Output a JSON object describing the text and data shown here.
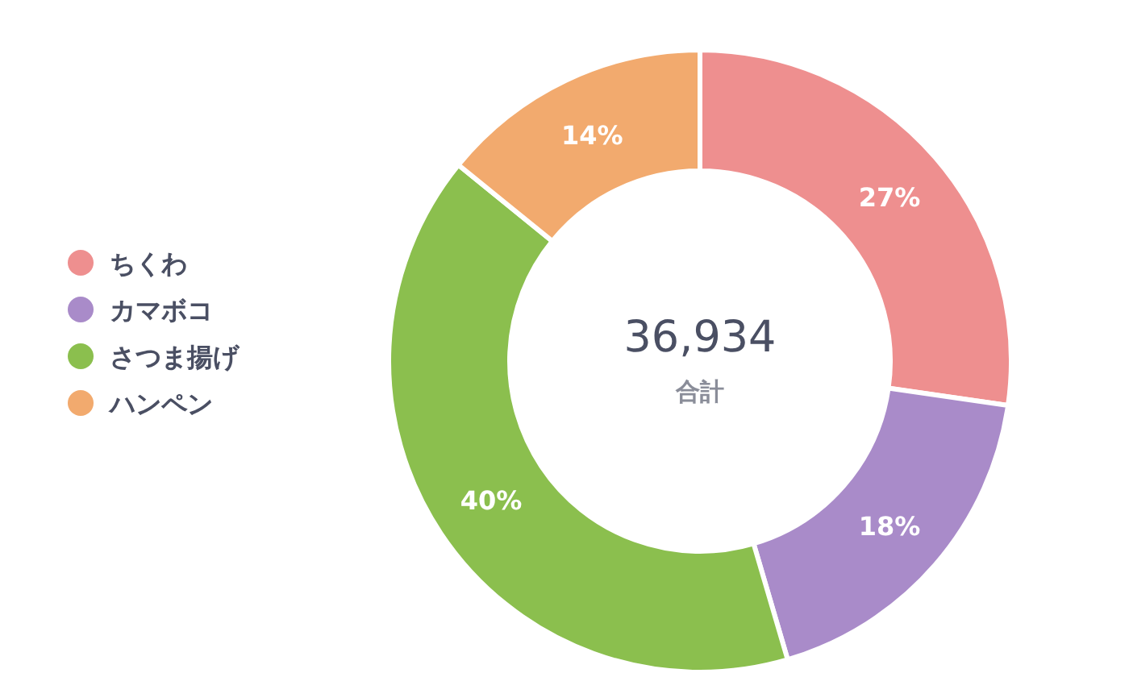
{
  "chart_data": {
    "type": "donut",
    "categories": [
      "ちくわ",
      "カマボコ",
      "さつま揚げ",
      "ハンペン"
    ],
    "values": [
      27,
      18,
      40,
      14
    ],
    "value_labels": [
      "27%",
      "18%",
      "40%",
      "14%"
    ],
    "colors": [
      "#ee8f8f",
      "#a98bc9",
      "#8bbf4e",
      "#f2aa6e"
    ],
    "annotations": [
      "36,934",
      "合計"
    ],
    "legend": "left"
  }
}
